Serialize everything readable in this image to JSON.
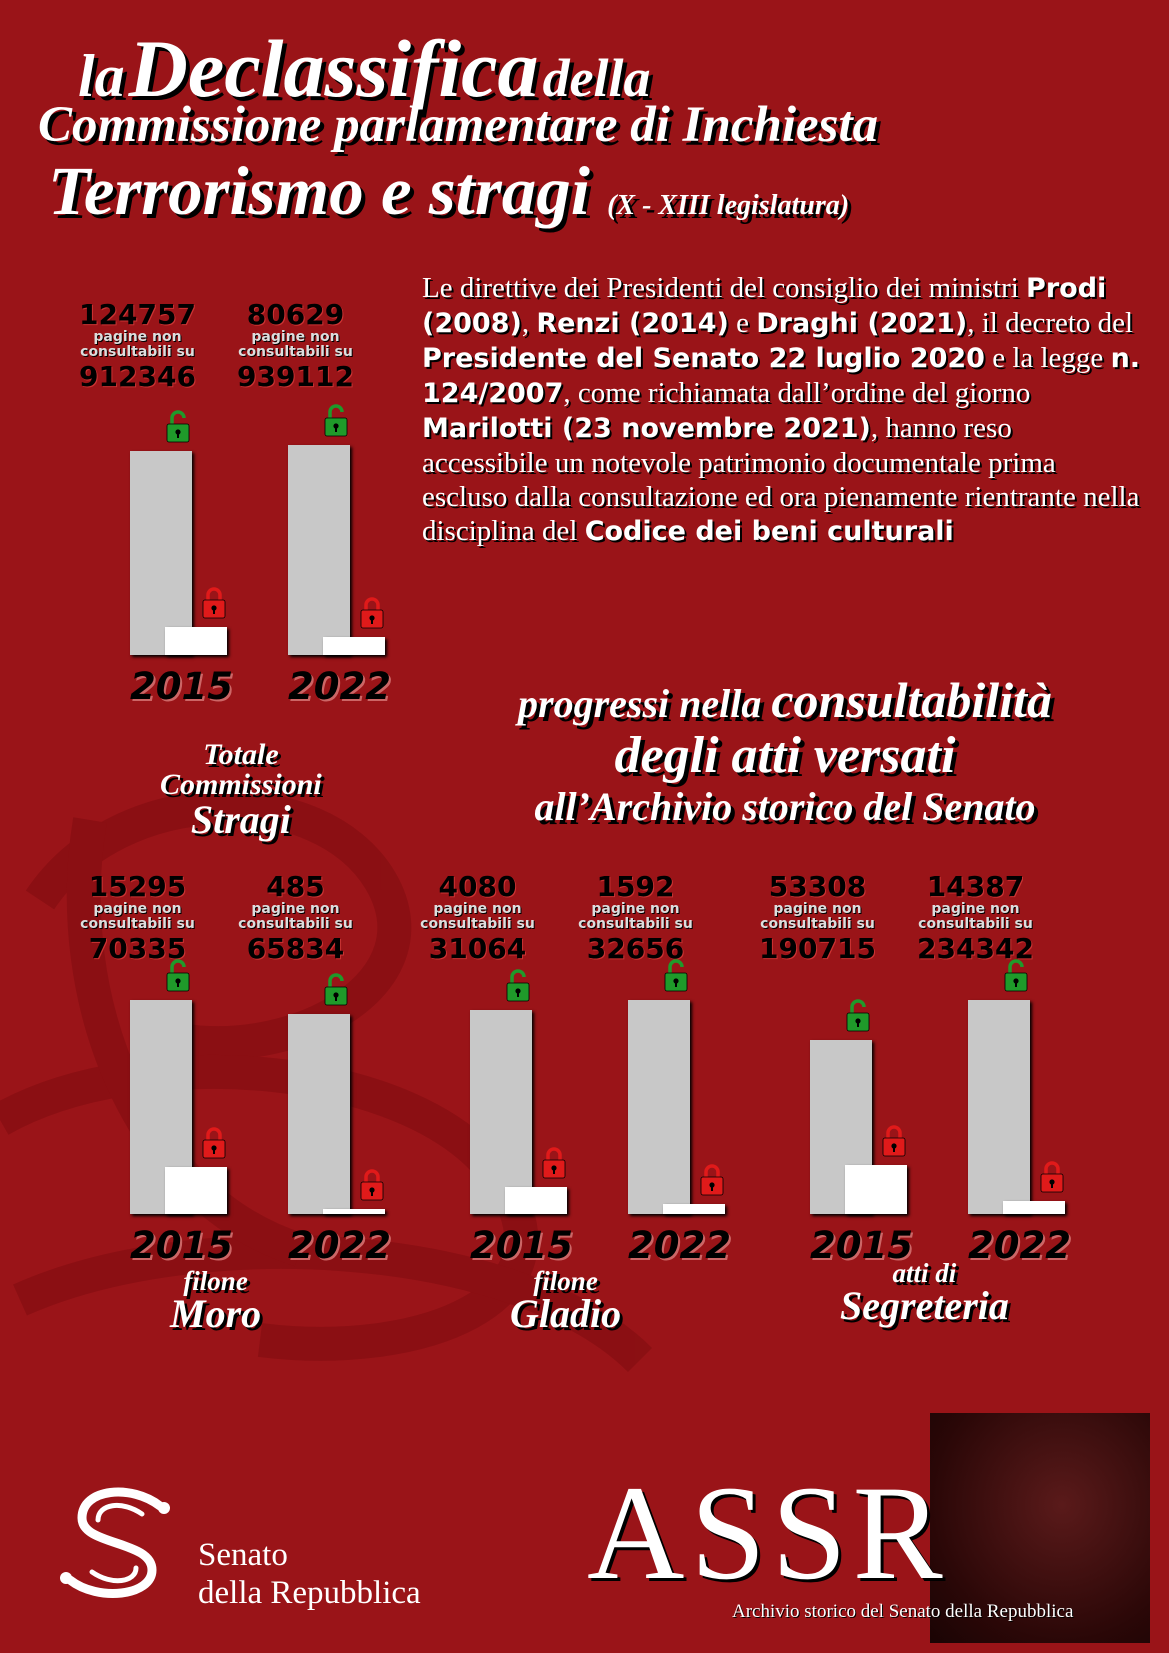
{
  "title": {
    "la": "la",
    "declassifica": "Declassifica",
    "della": "della",
    "line2": "Commissione parlamentare di Inchiesta",
    "line3": "Terrorismo e stragi",
    "legislatura": "(X - XIII legislatura)"
  },
  "description": {
    "p1": "Le direttive dei Presidenti del consiglio dei ministri",
    "prodi": "Prodi (2008)",
    "c1": ",",
    "renzi": "Renzi (2014)",
    "e1": "e",
    "draghi": "Draghi (2021)",
    "p2": ", il decreto del",
    "presidente": "Presidente del Senato 22 luglio 2020",
    "p3": "e la legge",
    "legge": "n. 124/2007",
    "p4": ", come richiamata dall’ordine del giorno",
    "marilotti": "Marilotti (23 novembre 2021)",
    "p5": ", hanno reso accessibile un notevole patrimonio documentale prima escluso dalla consultazione ed ora pienamente rientrante nella disciplina del",
    "codice": "Codice dei beni culturali"
  },
  "progress": {
    "l1a": "progressi nella",
    "l1b": "consultabilità",
    "l2": "degli atti versati",
    "l3": "all’Archivio storico del Senato"
  },
  "chart_data": [
    {
      "type": "bar",
      "group": "Totale Commissioni Stragi",
      "categories": [
        "2015",
        "2022"
      ],
      "series": [
        {
          "name": "totale",
          "values": [
            912346,
            939112
          ]
        },
        {
          "name": "pagine non consultabili",
          "values": [
            124757,
            80629
          ]
        }
      ],
      "label_mid": "pagine non consultabili su"
    },
    {
      "type": "bar",
      "group": "filone Moro",
      "categories": [
        "2015",
        "2022"
      ],
      "series": [
        {
          "name": "totale",
          "values": [
            70335,
            65834
          ]
        },
        {
          "name": "pagine non consultabili",
          "values": [
            15295,
            485
          ]
        }
      ],
      "label_mid": "pagine non consultabili su"
    },
    {
      "type": "bar",
      "group": "filone Gladio",
      "categories": [
        "2015",
        "2022"
      ],
      "series": [
        {
          "name": "totale",
          "values": [
            31064,
            32656
          ]
        },
        {
          "name": "pagine non consultabili",
          "values": [
            4080,
            1592
          ]
        }
      ],
      "label_mid": "pagine non consultabili su"
    },
    {
      "type": "bar",
      "group": "atti di Segreteria",
      "categories": [
        "2015",
        "2022"
      ],
      "series": [
        {
          "name": "totale",
          "values": [
            190715,
            234342
          ]
        },
        {
          "name": "pagine non consultabili",
          "values": [
            53308,
            14387
          ]
        }
      ],
      "label_mid": "pagine non consultabili su"
    }
  ],
  "groups": [
    {
      "name_l1": "Totale",
      "name_l2": "Commissioni",
      "name_l3": "Stragi"
    },
    {
      "name_l1": "filone",
      "name_l2": "Moro",
      "name_l3": ""
    },
    {
      "name_l1": "filone",
      "name_l2": "Gladio",
      "name_l3": ""
    },
    {
      "name_l1": "atti di",
      "name_l2": "Segreteria",
      "name_l3": ""
    }
  ],
  "colors": {
    "background": "#9a1418",
    "bar_total": "#c8c8c8",
    "bar_closed": "#ffffff",
    "lock_open": "#1f9a2a",
    "lock_closed": "#e01a1a"
  },
  "icons": {
    "open": "lock-open-icon",
    "closed": "lock-closed-icon"
  },
  "footer": {
    "senato_l1": "Senato",
    "senato_l2": "della Repubblica",
    "assr": "ASSR",
    "assr_sub": "Archivio storico del Senato della Repubblica"
  }
}
